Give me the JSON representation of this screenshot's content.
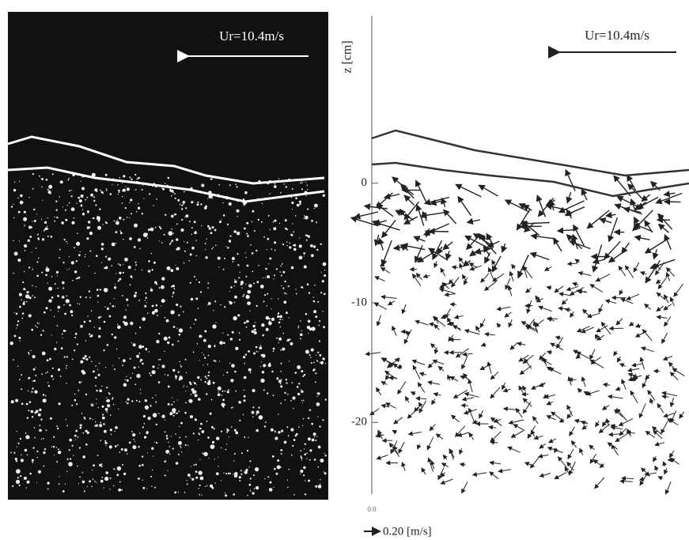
{
  "figure": {
    "left_panel": {
      "label": "Ur=10.4m/s"
    },
    "right_panel": {
      "label": "Ur=10.4m/s",
      "y_axis_label": "z [cm]",
      "ylim": [
        -26,
        14
      ],
      "yticks": [
        0,
        -10,
        -20
      ],
      "x_tick_label": "0.0",
      "scale_label": "0.20 [m/s]"
    }
  }
}
